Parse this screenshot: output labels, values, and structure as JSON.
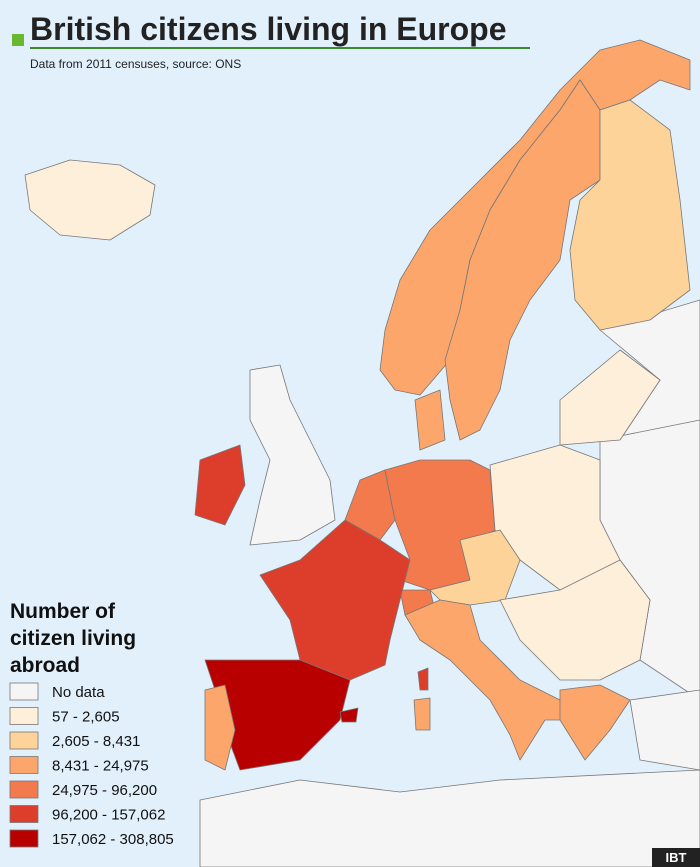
{
  "header": {
    "title": "British citizens living in Europe",
    "subtitle": "Data from 2011 censuses, source: ONS"
  },
  "legend": {
    "title": [
      "Number of",
      "citizen living",
      "abroad"
    ],
    "items": [
      {
        "label": "No data",
        "color": "#f5f5f5"
      },
      {
        "label": "57 - 2,605",
        "color": "#feefdb"
      },
      {
        "label": "2,605 - 8,431",
        "color": "#fdd39a"
      },
      {
        "label": "8,431 - 24,975",
        "color": "#fca66b"
      },
      {
        "label": "24,975 - 96,200",
        "color": "#f37a4c"
      },
      {
        "label": "96,200 - 157,062",
        "color": "#dd3e2c"
      },
      {
        "label": "157,062 - 308,805",
        "color": "#b80000"
      }
    ]
  },
  "logo": "IBT"
}
